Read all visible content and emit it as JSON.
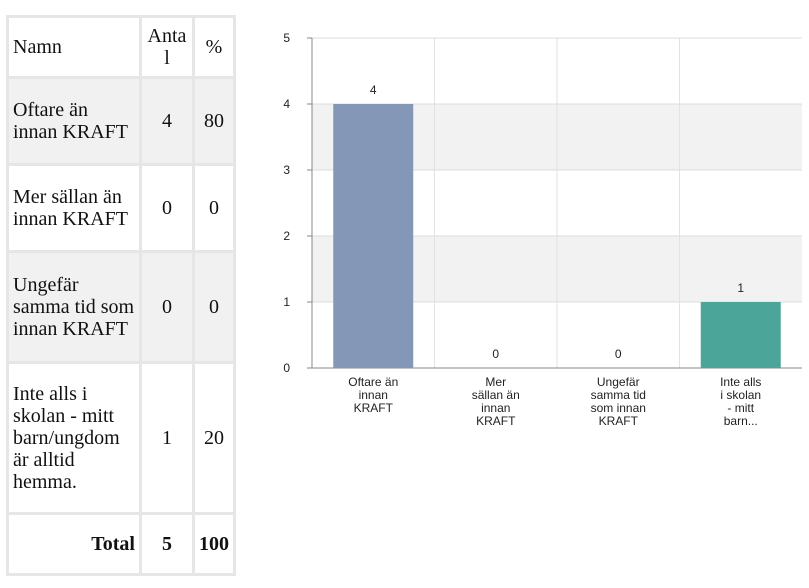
{
  "table": {
    "headers": {
      "name": "Namn",
      "count": "Anta l",
      "percent": "%"
    },
    "rows": [
      {
        "name": "Oftare än innan KRAFT",
        "count": "4",
        "percent": "80"
      },
      {
        "name": "Mer sällan än innan KRAFT",
        "count": "0",
        "percent": "0"
      },
      {
        "name": "Ungefär samma tid som innan KRAFT",
        "count": "0",
        "percent": "0"
      },
      {
        "name": "Inte alls i skolan - mitt barn/ungdom är alltid hemma.",
        "count": "1",
        "percent": "20"
      }
    ],
    "total": {
      "label": "Total",
      "count": "5",
      "percent": "100"
    }
  },
  "chart_data": {
    "type": "bar",
    "categories": [
      [
        "Oftare än",
        "innan",
        "KRAFT"
      ],
      [
        "Mer",
        "sällan än",
        "innan",
        "KRAFT"
      ],
      [
        "Ungefär",
        "samma tid",
        "som innan",
        "KRAFT"
      ],
      [
        "Inte alls",
        "i skolan",
        "- mitt",
        "barn..."
      ]
    ],
    "values": [
      4,
      0,
      0,
      1
    ],
    "bar_colors": [
      "#8597b7",
      "#8597b7",
      "#8597b7",
      "#4ba598"
    ],
    "ylim": [
      0,
      5
    ],
    "yticks": [
      0,
      1,
      2,
      3,
      4,
      5
    ],
    "grid": true,
    "title": "",
    "xlabel": "",
    "ylabel": ""
  }
}
